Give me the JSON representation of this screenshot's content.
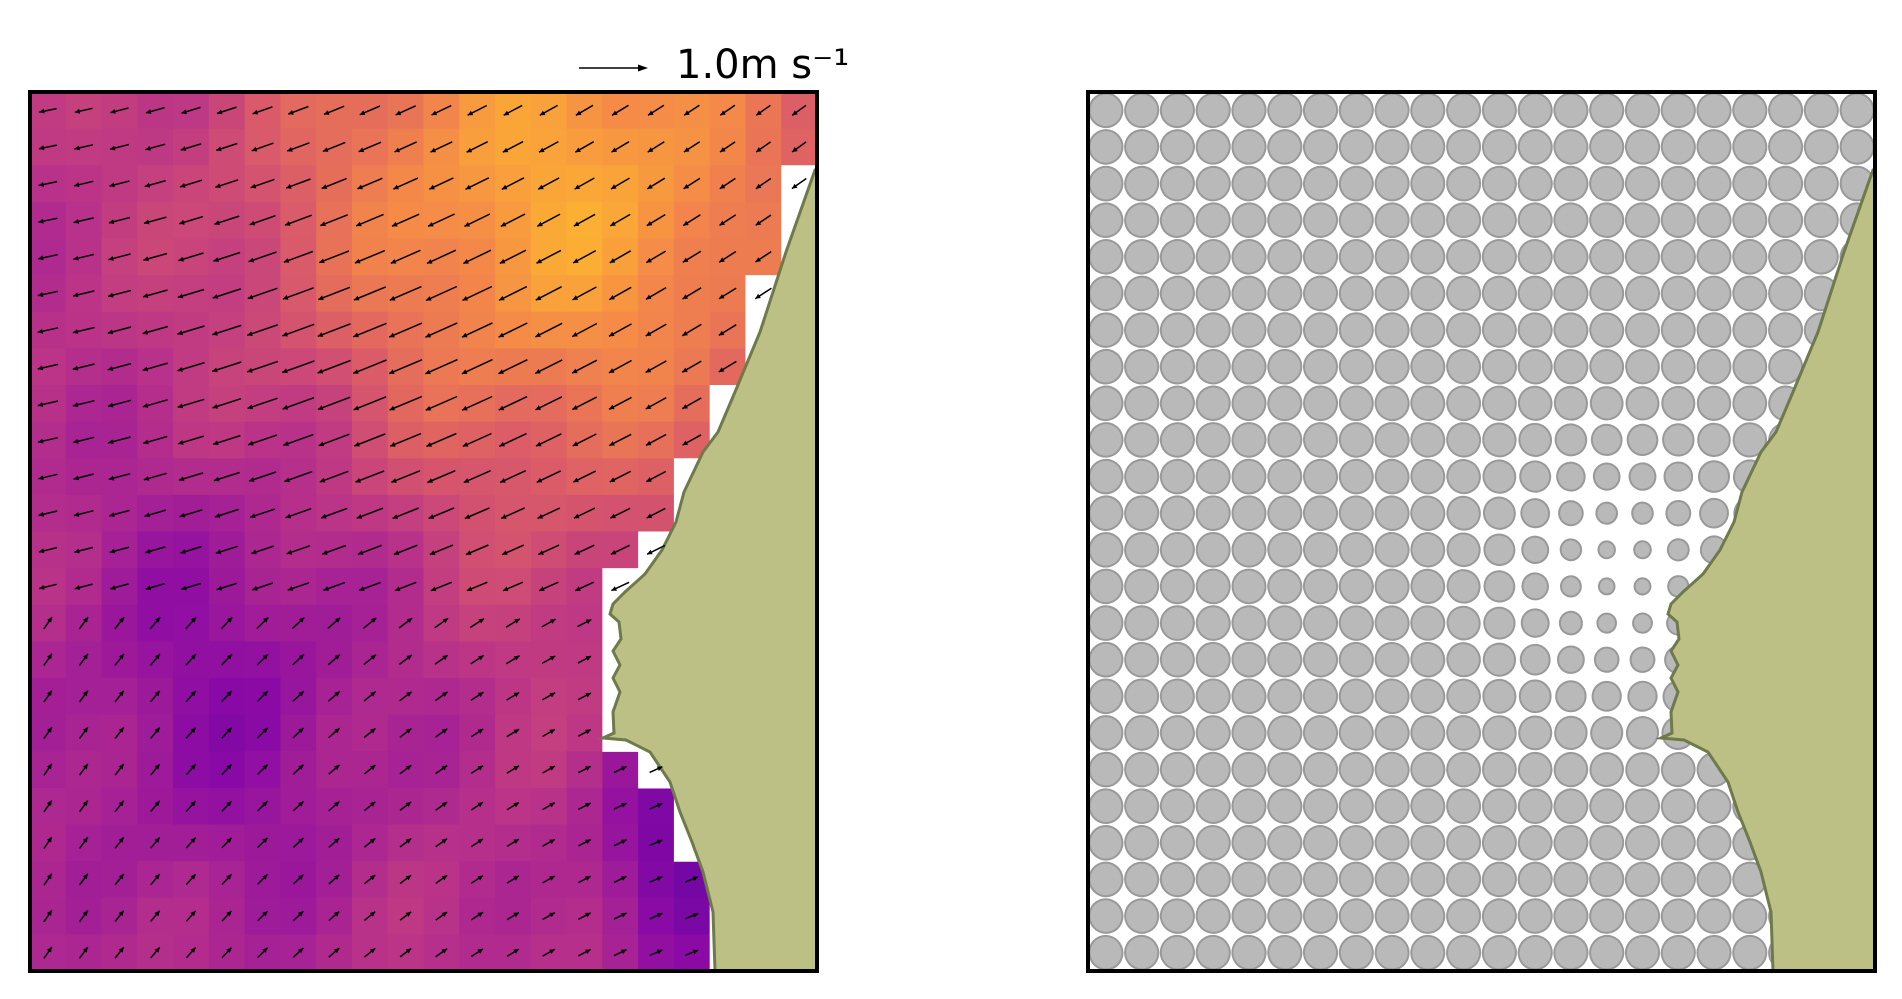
{
  "chart_data": [
    {
      "type": "heatmap",
      "panel": "left",
      "overlay": "quiver",
      "colormap": "plasma",
      "land_color": "#bcc084",
      "coast_color": "#6e7a4a",
      "grid": {
        "cols": 22,
        "rows": 24
      },
      "quiver_key": {
        "value": 1.0,
        "label": "1.0m s⁻¹"
      }
    },
    {
      "type": "scatter",
      "panel": "right",
      "marker": "ellipse",
      "marker_color": "#b9b9b9",
      "marker_edge_color": "#999999",
      "land_color": "#bcc084",
      "coast_color": "#6e7a4a",
      "grid": {
        "cols": 22,
        "rows": 24
      }
    }
  ]
}
